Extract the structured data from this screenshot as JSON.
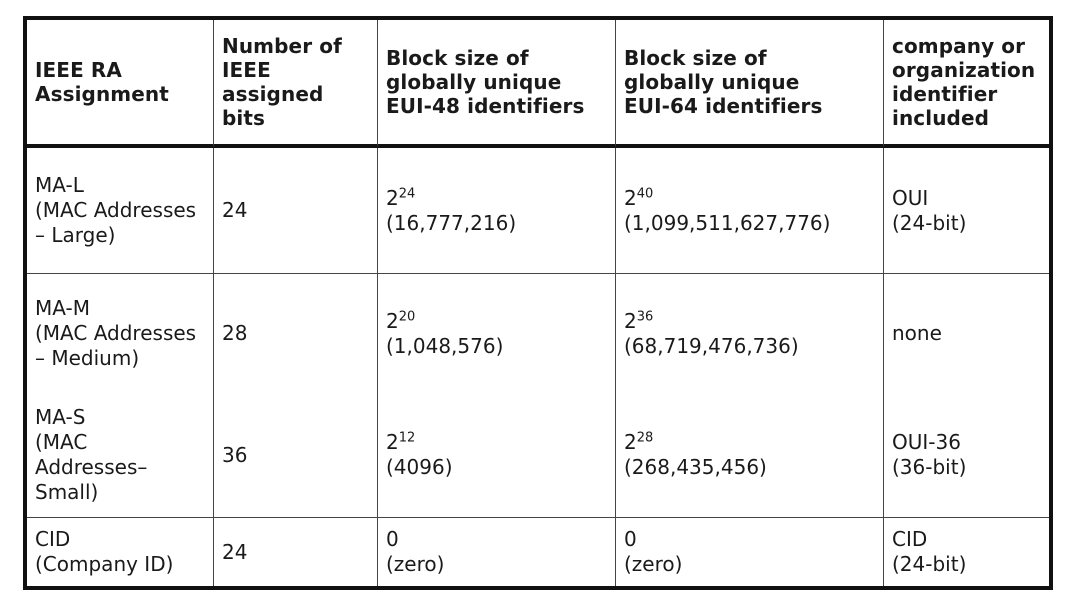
{
  "table": {
    "headers": [
      "IEEE RA\nAssignment",
      "Number of\nIEEE\nassigned\nbits",
      "Block size of\nglobally unique\nEUI-48 identifiers",
      "Block size of\nglobally unique\nEUI-64 identifiers",
      "company or\norganization\nidentifier\nincluded"
    ],
    "rows": [
      {
        "assignment": "MA-L\n(MAC Addresses\n– Large)",
        "bits": "24",
        "eui48_base": "2",
        "eui48_exp": "24",
        "eui48_value": "(16,777,216)",
        "eui64_base": "2",
        "eui64_exp": "40",
        "eui64_value": "(1,099,511,627,776)",
        "identifier": "OUI\n(24-bit)"
      },
      {
        "assignment": "MA-M\n(MAC Addresses\n– Medium)",
        "bits": "28",
        "eui48_base": "2",
        "eui48_exp": "20",
        "eui48_value": "(1,048,576)",
        "eui64_base": "2",
        "eui64_exp": "36",
        "eui64_value": "(68,719,476,736)",
        "identifier": "none"
      },
      {
        "assignment": "MA-S\n(MAC\nAddresses–\nSmall)",
        "bits": "36",
        "eui48_base": "2",
        "eui48_exp": "12",
        "eui48_value": "(4096)",
        "eui64_base": "2",
        "eui64_exp": "28",
        "eui64_value": "(268,435,456)",
        "identifier": "OUI-36\n(36-bit)"
      },
      {
        "assignment": "CID\n(Company ID)",
        "bits": "24",
        "eui48_base": "0",
        "eui48_exp": "",
        "eui48_value": "(zero)",
        "eui64_base": "0",
        "eui64_exp": "",
        "eui64_value": "(zero)",
        "identifier": "CID\n(24-bit)"
      }
    ]
  }
}
